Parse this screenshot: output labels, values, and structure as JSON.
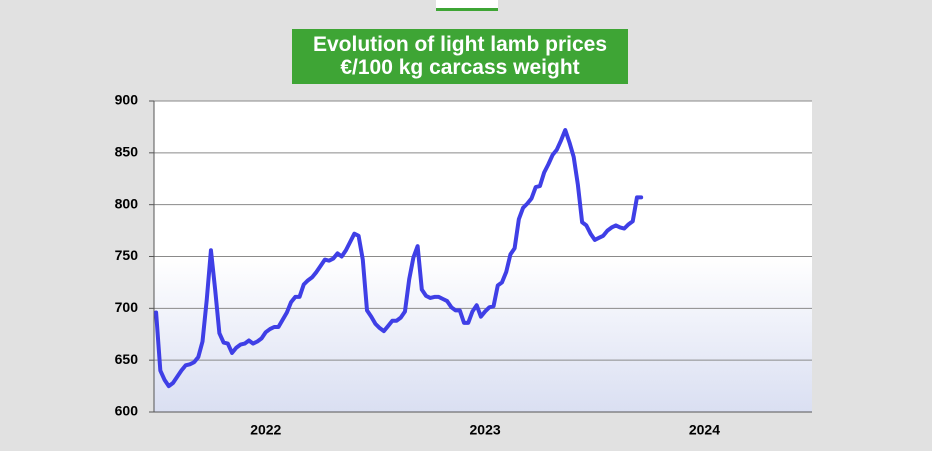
{
  "chart_data": {
    "type": "line",
    "title": "Evolution of light lamb prices",
    "subtitle": "€/100 kg carcass weight",
    "categories": [
      null,
      null,
      null,
      null,
      null,
      null,
      null,
      null,
      null,
      null,
      null,
      null,
      null,
      null,
      null,
      null,
      null,
      null,
      null,
      null,
      null,
      null,
      null,
      null,
      null,
      null,
      "2022",
      null,
      null,
      null,
      null,
      null,
      null,
      null,
      null,
      null,
      null,
      null,
      null,
      null,
      null,
      null,
      null,
      null,
      null,
      null,
      null,
      null,
      null,
      null,
      null,
      null,
      null,
      null,
      null,
      null,
      null,
      null,
      null,
      null,
      null,
      null,
      null,
      null,
      null,
      null,
      null,
      null,
      null,
      null,
      null,
      null,
      null,
      null,
      null,
      null,
      null,
      null,
      "2023",
      null,
      null,
      null,
      null,
      null,
      null,
      null,
      null,
      null,
      null,
      null,
      null,
      null,
      null,
      null,
      null,
      null,
      null,
      null,
      null,
      null,
      null,
      null,
      null,
      null,
      null,
      null,
      null,
      null,
      null,
      null,
      null,
      null,
      null,
      null,
      null,
      null,
      null,
      null,
      null,
      null,
      null,
      null,
      null,
      null,
      null,
      null,
      null,
      null,
      null,
      null,
      "2024",
      null,
      null,
      null,
      null,
      null,
      null,
      null,
      null,
      null,
      null,
      null,
      null,
      null,
      null,
      null,
      null,
      null,
      null,
      null,
      null,
      null,
      null,
      null,
      null,
      null
    ],
    "series": [
      {
        "color": "#3f3fe6",
        "values": [
          696,
          640,
          631,
          625,
          628,
          634,
          640,
          645,
          646,
          648,
          653,
          668,
          708,
          756,
          718,
          676,
          667,
          666,
          657,
          662,
          665,
          666,
          669,
          666,
          668,
          671,
          677,
          680,
          682,
          682,
          689,
          696,
          706,
          711,
          711,
          723,
          727,
          730,
          735,
          741,
          747,
          746,
          748,
          753,
          750,
          756,
          764,
          772,
          770,
          747,
          698,
          692,
          685,
          681,
          678,
          683,
          688,
          688,
          691,
          697,
          728,
          749,
          760,
          718,
          712,
          710,
          711,
          711,
          709,
          707,
          701,
          698,
          698,
          686,
          686,
          697,
          703,
          692,
          697,
          701,
          702,
          722,
          725,
          735,
          752,
          758,
          786,
          797,
          801,
          806,
          817,
          818,
          831,
          839,
          848,
          853,
          862,
          872,
          860,
          846,
          819,
          783,
          780,
          772,
          766,
          768,
          770,
          775,
          778,
          780,
          778,
          777,
          781,
          784,
          807,
          807,
          null,
          null,
          null,
          null,
          null,
          null,
          null,
          null,
          null,
          null,
          null,
          null,
          null,
          null,
          null,
          null,
          null,
          null,
          null,
          null,
          null,
          null,
          null,
          null,
          null,
          null,
          null,
          null,
          null,
          null,
          null,
          null,
          null,
          null,
          null,
          null,
          null,
          null,
          null,
          null
        ]
      }
    ],
    "ylim": [
      600,
      900
    ],
    "yticks": [
      600,
      650,
      700,
      750,
      800,
      850,
      900
    ],
    "grid": true
  }
}
